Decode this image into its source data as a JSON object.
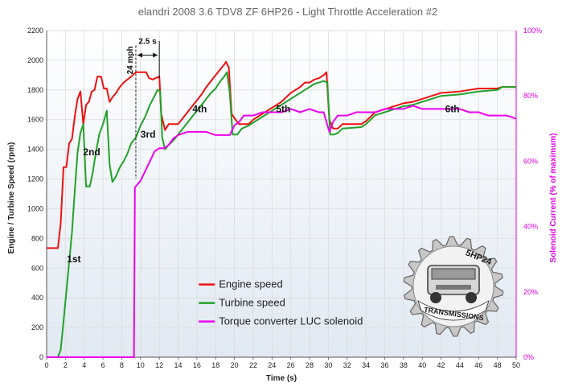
{
  "chart_data": {
    "type": "line",
    "title": "elandri 2008 3.6 TDV8 ZF 6HP26 - Light Throttle Acceleration #2",
    "xlabel": "Time (s)",
    "ylabel": "Engine / Turbine Speed (rpm)",
    "ylabel_right": "Solenoid Current (% of maximum)",
    "xlim": [
      0,
      50
    ],
    "ylim": [
      0,
      2200
    ],
    "ylim_right": [
      0,
      100
    ],
    "x_ticks": [
      "0",
      "2",
      "4",
      "6",
      "8",
      "10",
      "12",
      "14",
      "16",
      "18",
      "20",
      "22",
      "24",
      "26",
      "28",
      "30",
      "32",
      "34",
      "36",
      "38",
      "40",
      "42",
      "44",
      "46",
      "48",
      "50"
    ],
    "y_ticks": [
      "0",
      "200",
      "400",
      "600",
      "800",
      "1000",
      "1200",
      "1400",
      "1600",
      "1800",
      "2000",
      "2200"
    ],
    "y_ticks_right": [
      "0%",
      "20%",
      "40%",
      "60%",
      "80%",
      "100%"
    ],
    "legend_position": "center-left",
    "series": [
      {
        "name": "Engine speed",
        "color": "#ee1111",
        "axis": "left",
        "points": [
          [
            0,
            735
          ],
          [
            1.2,
            735
          ],
          [
            1.5,
            900
          ],
          [
            1.8,
            1280
          ],
          [
            2.1,
            1280
          ],
          [
            2.4,
            1440
          ],
          [
            2.7,
            1470
          ],
          [
            3.0,
            1620
          ],
          [
            3.3,
            1740
          ],
          [
            3.6,
            1790
          ],
          [
            3.9,
            1570
          ],
          [
            4.2,
            1700
          ],
          [
            4.5,
            1720
          ],
          [
            4.8,
            1790
          ],
          [
            5.1,
            1800
          ],
          [
            5.4,
            1890
          ],
          [
            5.8,
            1890
          ],
          [
            6.1,
            1810
          ],
          [
            6.4,
            1810
          ],
          [
            6.7,
            1720
          ],
          [
            7.0,
            1750
          ],
          [
            7.4,
            1780
          ],
          [
            7.8,
            1820
          ],
          [
            8.2,
            1850
          ],
          [
            8.6,
            1870
          ],
          [
            9.0,
            1890
          ],
          [
            9.5,
            1920
          ],
          [
            10.2,
            1920
          ],
          [
            10.6,
            1920
          ],
          [
            10.9,
            1880
          ],
          [
            11.3,
            1870
          ],
          [
            11.6,
            1880
          ],
          [
            12.0,
            1890
          ],
          [
            12.2,
            1640
          ],
          [
            12.6,
            1530
          ],
          [
            13.0,
            1570
          ],
          [
            13.5,
            1570
          ],
          [
            14.0,
            1570
          ],
          [
            14.5,
            1610
          ],
          [
            15.0,
            1650
          ],
          [
            15.5,
            1690
          ],
          [
            16.0,
            1730
          ],
          [
            16.5,
            1770
          ],
          [
            17.0,
            1820
          ],
          [
            17.5,
            1860
          ],
          [
            18.0,
            1900
          ],
          [
            18.5,
            1940
          ],
          [
            18.9,
            1970
          ],
          [
            19.1,
            1990
          ],
          [
            19.4,
            1950
          ],
          [
            19.7,
            1640
          ],
          [
            20.0,
            1610
          ],
          [
            20.5,
            1570
          ],
          [
            21.5,
            1570
          ],
          [
            22.0,
            1600
          ],
          [
            22.5,
            1620
          ],
          [
            23.0,
            1640
          ],
          [
            23.5,
            1660
          ],
          [
            24.0,
            1680
          ],
          [
            24.5,
            1700
          ],
          [
            25.0,
            1720
          ],
          [
            25.5,
            1750
          ],
          [
            26.0,
            1780
          ],
          [
            26.5,
            1800
          ],
          [
            27.0,
            1820
          ],
          [
            27.5,
            1850
          ],
          [
            28.0,
            1850
          ],
          [
            28.5,
            1870
          ],
          [
            29.0,
            1880
          ],
          [
            29.5,
            1900
          ],
          [
            29.8,
            1920
          ],
          [
            30.1,
            1600
          ],
          [
            30.5,
            1540
          ],
          [
            31.0,
            1540
          ],
          [
            31.5,
            1570
          ],
          [
            33.5,
            1570
          ],
          [
            34.0,
            1590
          ],
          [
            34.5,
            1620
          ],
          [
            35.0,
            1650
          ],
          [
            36.0,
            1670
          ],
          [
            37.0,
            1690
          ],
          [
            38.0,
            1710
          ],
          [
            39.0,
            1720
          ],
          [
            40.0,
            1740
          ],
          [
            41.0,
            1760
          ],
          [
            42.0,
            1780
          ],
          [
            44.0,
            1790
          ],
          [
            45.0,
            1800
          ],
          [
            46.0,
            1810
          ],
          [
            48.0,
            1810
          ],
          [
            48.5,
            1820
          ],
          [
            50.0,
            1820
          ]
        ]
      },
      {
        "name": "Turbine speed",
        "color": "#22a22a",
        "axis": "left",
        "points": [
          [
            0,
            0
          ],
          [
            1.2,
            0
          ],
          [
            1.5,
            50
          ],
          [
            1.8,
            240
          ],
          [
            2.1,
            440
          ],
          [
            2.4,
            640
          ],
          [
            2.7,
            840
          ],
          [
            3.0,
            1120
          ],
          [
            3.3,
            1380
          ],
          [
            3.6,
            1510
          ],
          [
            3.9,
            1570
          ],
          [
            4.2,
            1150
          ],
          [
            4.6,
            1150
          ],
          [
            4.9,
            1240
          ],
          [
            5.2,
            1360
          ],
          [
            5.6,
            1500
          ],
          [
            6.0,
            1570
          ],
          [
            6.4,
            1660
          ],
          [
            6.7,
            1300
          ],
          [
            7.0,
            1180
          ],
          [
            7.4,
            1220
          ],
          [
            7.8,
            1280
          ],
          [
            8.2,
            1320
          ],
          [
            8.6,
            1370
          ],
          [
            9.0,
            1440
          ],
          [
            9.5,
            1480
          ],
          [
            10.0,
            1560
          ],
          [
            10.5,
            1620
          ],
          [
            11.0,
            1700
          ],
          [
            11.5,
            1760
          ],
          [
            11.8,
            1800
          ],
          [
            12.1,
            1790
          ],
          [
            12.3,
            1480
          ],
          [
            12.6,
            1400
          ],
          [
            13.0,
            1430
          ],
          [
            13.5,
            1460
          ],
          [
            14.0,
            1500
          ],
          [
            14.5,
            1540
          ],
          [
            15.0,
            1580
          ],
          [
            15.5,
            1620
          ],
          [
            16.0,
            1660
          ],
          [
            16.5,
            1700
          ],
          [
            17.0,
            1740
          ],
          [
            17.5,
            1780
          ],
          [
            18.0,
            1810
          ],
          [
            18.5,
            1860
          ],
          [
            18.9,
            1890
          ],
          [
            19.2,
            1920
          ],
          [
            19.5,
            1780
          ],
          [
            19.8,
            1500
          ],
          [
            20.3,
            1500
          ],
          [
            20.8,
            1540
          ],
          [
            21.5,
            1560
          ],
          [
            22.0,
            1580
          ],
          [
            22.5,
            1600
          ],
          [
            23.0,
            1620
          ],
          [
            23.5,
            1640
          ],
          [
            24.0,
            1660
          ],
          [
            24.5,
            1680
          ],
          [
            25.0,
            1700
          ],
          [
            25.5,
            1720
          ],
          [
            26.0,
            1740
          ],
          [
            26.5,
            1760
          ],
          [
            27.0,
            1780
          ],
          [
            27.5,
            1800
          ],
          [
            28.0,
            1820
          ],
          [
            28.5,
            1840
          ],
          [
            29.0,
            1850
          ],
          [
            29.5,
            1860
          ],
          [
            29.9,
            1850
          ],
          [
            30.2,
            1500
          ],
          [
            30.6,
            1500
          ],
          [
            31.0,
            1510
          ],
          [
            31.5,
            1540
          ],
          [
            33.5,
            1550
          ],
          [
            34.0,
            1570
          ],
          [
            34.5,
            1600
          ],
          [
            35.0,
            1630
          ],
          [
            36.0,
            1650
          ],
          [
            37.0,
            1670
          ],
          [
            38.0,
            1690
          ],
          [
            39.0,
            1700
          ],
          [
            40.0,
            1720
          ],
          [
            41.0,
            1740
          ],
          [
            42.0,
            1760
          ],
          [
            44.0,
            1770
          ],
          [
            45.0,
            1780
          ],
          [
            46.0,
            1790
          ],
          [
            48.0,
            1800
          ],
          [
            48.5,
            1820
          ],
          [
            50.0,
            1820
          ]
        ]
      },
      {
        "name": "Torque converter LUC solenoid",
        "color": "#ee00ee",
        "axis": "right",
        "points": [
          [
            0,
            0
          ],
          [
            9.3,
            0
          ],
          [
            9.4,
            52
          ],
          [
            10.0,
            54
          ],
          [
            10.5,
            57
          ],
          [
            11.0,
            60
          ],
          [
            11.5,
            63
          ],
          [
            12.0,
            64
          ],
          [
            12.5,
            64
          ],
          [
            13.0,
            65
          ],
          [
            13.5,
            67
          ],
          [
            14.0,
            68
          ],
          [
            15.0,
            69
          ],
          [
            16.0,
            69
          ],
          [
            17.0,
            69
          ],
          [
            18.0,
            68
          ],
          [
            19.0,
            68
          ],
          [
            19.5,
            68
          ],
          [
            20.0,
            71
          ],
          [
            20.5,
            72
          ],
          [
            21.0,
            74
          ],
          [
            22.0,
            74
          ],
          [
            23.0,
            75
          ],
          [
            24.0,
            75
          ],
          [
            25.0,
            75
          ],
          [
            26.0,
            76
          ],
          [
            27.0,
            75
          ],
          [
            28.0,
            76
          ],
          [
            29.0,
            75
          ],
          [
            29.5,
            75
          ],
          [
            29.8,
            72
          ],
          [
            30.1,
            69
          ],
          [
            30.5,
            72
          ],
          [
            31.0,
            74
          ],
          [
            32.0,
            74
          ],
          [
            33.0,
            75
          ],
          [
            34.0,
            75
          ],
          [
            35.0,
            75
          ],
          [
            36.0,
            76
          ],
          [
            37.0,
            76
          ],
          [
            38.0,
            76
          ],
          [
            39.0,
            77
          ],
          [
            40.0,
            76
          ],
          [
            41.0,
            76
          ],
          [
            42.0,
            76
          ],
          [
            43.0,
            76
          ],
          [
            44.0,
            76
          ],
          [
            45.0,
            75
          ],
          [
            46.0,
            75
          ],
          [
            47.0,
            74
          ],
          [
            48.0,
            74
          ],
          [
            49.0,
            74
          ],
          [
            50.0,
            73
          ]
        ]
      }
    ],
    "annotations": [
      {
        "label": "1st",
        "x": 2.9,
        "y": 640
      },
      {
        "label": "2nd",
        "x": 4.8,
        "y": 1360
      },
      {
        "label": "3rd",
        "x": 10.8,
        "y": 1480
      },
      {
        "label": "4th",
        "x": 16.3,
        "y": 1650
      },
      {
        "label": "5th",
        "x": 25.2,
        "y": 1650
      },
      {
        "label": "6th",
        "x": 43.2,
        "y": 1650
      }
    ],
    "marker_label": "24 mph",
    "interval_label": "2.5 s",
    "marker_x": 9.5,
    "interval": [
      9.5,
      12.0
    ]
  },
  "logo": {
    "top": "5HP24",
    "bottom": "TRANSMISSIONS"
  }
}
